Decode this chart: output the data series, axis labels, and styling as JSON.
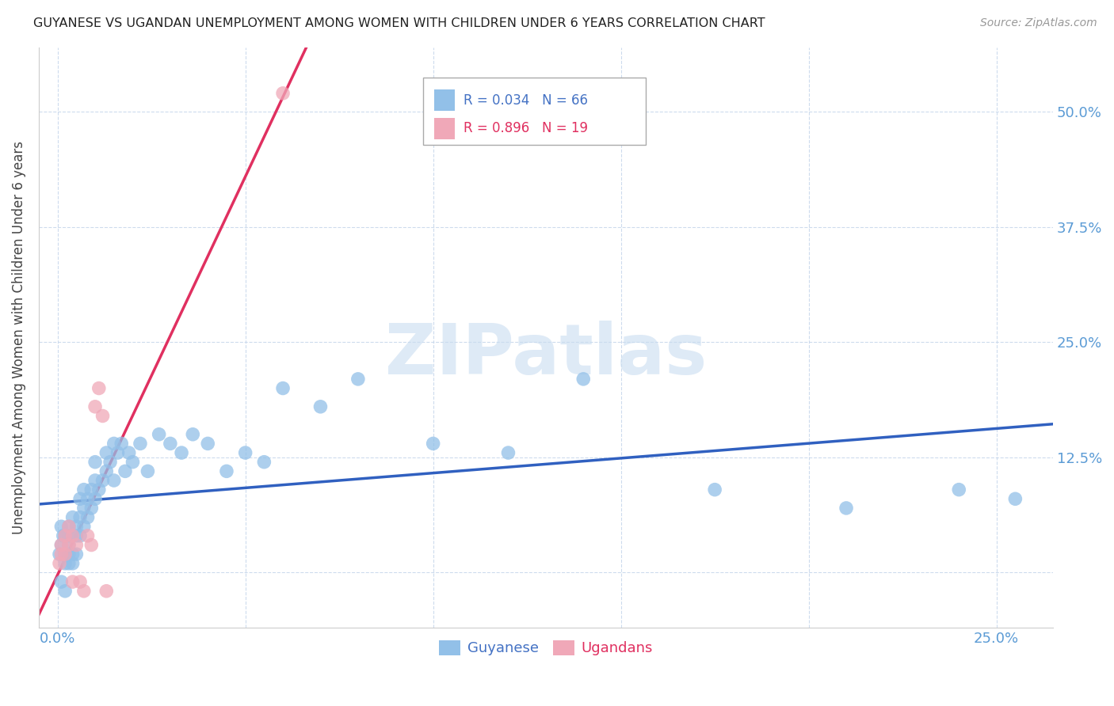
{
  "title": "GUYANESE VS UGANDAN UNEMPLOYMENT AMONG WOMEN WITH CHILDREN UNDER 6 YEARS CORRELATION CHART",
  "source": "Source: ZipAtlas.com",
  "ylabel": "Unemployment Among Women with Children Under 6 years",
  "xlim": [
    -0.005,
    0.265
  ],
  "ylim": [
    -0.06,
    0.57
  ],
  "xticks": [
    0.0,
    0.05,
    0.1,
    0.15,
    0.2,
    0.25
  ],
  "yticks": [
    0.0,
    0.125,
    0.25,
    0.375,
    0.5
  ],
  "ytick_labels": [
    "",
    "12.5%",
    "25.0%",
    "37.5%",
    "50.0%"
  ],
  "xtick_labels": [
    "0.0%",
    "",
    "",
    "",
    "",
    "25.0%"
  ],
  "guyanese_color": "#92C0E8",
  "ugandan_color": "#F0A8B8",
  "guyanese_line_color": "#3060C0",
  "ugandan_line_color": "#E03060",
  "watermark_text": "ZIPatlas",
  "legend_R_guyanese": "R = 0.034",
  "legend_N_guyanese": "N = 66",
  "legend_R_ugandan": "R = 0.896",
  "legend_N_ugandan": "N = 19",
  "guyanese_x": [
    0.0005,
    0.001,
    0.001,
    0.001,
    0.0015,
    0.002,
    0.002,
    0.002,
    0.002,
    0.003,
    0.003,
    0.003,
    0.003,
    0.003,
    0.004,
    0.004,
    0.004,
    0.004,
    0.005,
    0.005,
    0.005,
    0.006,
    0.006,
    0.006,
    0.007,
    0.007,
    0.007,
    0.008,
    0.008,
    0.009,
    0.009,
    0.01,
    0.01,
    0.01,
    0.011,
    0.012,
    0.013,
    0.013,
    0.014,
    0.015,
    0.015,
    0.016,
    0.017,
    0.018,
    0.019,
    0.02,
    0.022,
    0.024,
    0.027,
    0.03,
    0.033,
    0.036,
    0.04,
    0.045,
    0.05,
    0.055,
    0.06,
    0.07,
    0.08,
    0.1,
    0.12,
    0.14,
    0.175,
    0.21,
    0.24,
    0.255
  ],
  "guyanese_y": [
    0.02,
    0.03,
    0.05,
    -0.01,
    0.04,
    0.01,
    0.02,
    0.04,
    -0.02,
    0.01,
    0.02,
    0.04,
    0.05,
    0.03,
    0.01,
    0.02,
    0.04,
    0.06,
    0.02,
    0.04,
    0.05,
    0.04,
    0.06,
    0.08,
    0.05,
    0.07,
    0.09,
    0.06,
    0.08,
    0.07,
    0.09,
    0.08,
    0.1,
    0.12,
    0.09,
    0.1,
    0.11,
    0.13,
    0.12,
    0.1,
    0.14,
    0.13,
    0.14,
    0.11,
    0.13,
    0.12,
    0.14,
    0.11,
    0.15,
    0.14,
    0.13,
    0.15,
    0.14,
    0.11,
    0.13,
    0.12,
    0.2,
    0.18,
    0.21,
    0.14,
    0.13,
    0.21,
    0.09,
    0.07,
    0.09,
    0.08
  ],
  "ugandan_x": [
    0.0005,
    0.001,
    0.001,
    0.002,
    0.002,
    0.003,
    0.003,
    0.004,
    0.004,
    0.005,
    0.006,
    0.007,
    0.008,
    0.009,
    0.01,
    0.011,
    0.012,
    0.013,
    0.06
  ],
  "ugandan_y": [
    0.01,
    0.02,
    0.03,
    0.02,
    0.04,
    0.03,
    0.05,
    0.04,
    -0.01,
    0.03,
    -0.01,
    -0.02,
    0.04,
    0.03,
    0.18,
    0.2,
    0.17,
    -0.02,
    0.52
  ]
}
